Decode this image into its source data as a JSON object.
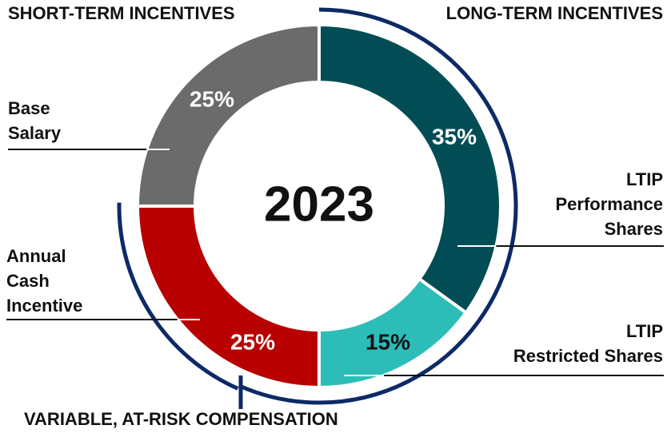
{
  "chart_data": {
    "type": "donut",
    "center_label": "2023",
    "group_labels": [
      "SHORT-TERM INCENTIVES",
      "LONG-TERM INCENTIVES",
      "VARIABLE, AT-RISK COMPENSATION"
    ],
    "categories": [
      "LTIP\nPerformance\nShares",
      "LTIP\nRestricted Shares",
      "Annual\nCash\nIncentive",
      "Base\nSalary"
    ],
    "values": [
      35,
      15,
      25,
      25
    ],
    "value_labels": [
      "35%",
      "15%",
      "25%",
      "25%"
    ],
    "colors": [
      "#024d55",
      "#2dbdb8",
      "#b80000",
      "#6b6b6b"
    ]
  }
}
